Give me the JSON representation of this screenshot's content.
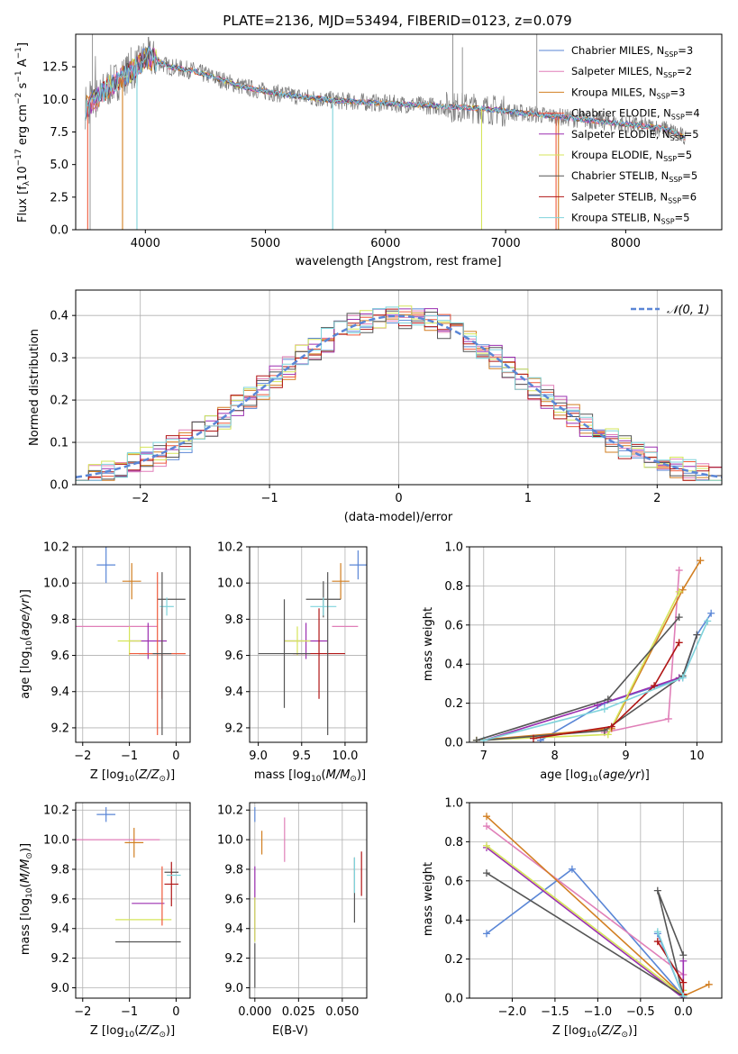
{
  "figure_title": "PLATE=2136, MJD=53494, FIBERID=0123, z=0.079",
  "series": [
    {
      "name": "Chabrier MILES",
      "nssp": "3",
      "color": "#5a86d6"
    },
    {
      "name": "Salpeter MILES",
      "nssp": "2",
      "color": "#e07fb8"
    },
    {
      "name": "Kroupa MILES",
      "nssp": "3",
      "color": "#d27f22"
    },
    {
      "name": "Chabrier ELODIE",
      "nssp": "4",
      "color": "#ef5a3c"
    },
    {
      "name": "Salpeter ELODIE",
      "nssp": "5",
      "color": "#9b2fb0"
    },
    {
      "name": "Kroupa ELODIE",
      "nssp": "5",
      "color": "#d5e55a"
    },
    {
      "name": "Chabrier STELIB",
      "nssp": "5",
      "color": "#555555"
    },
    {
      "name": "Salpeter STELIB",
      "nssp": "6",
      "color": "#b01515"
    },
    {
      "name": "Kroupa STELIB",
      "nssp": "5",
      "color": "#7fd3db"
    }
  ],
  "chart_data": [
    {
      "id": "spectrum",
      "type": "line",
      "xlabel": "wavelength [Angstrom, rest frame]",
      "ylabel": "Flux [fλ10⁻¹⁷ erg cm⁻² s⁻¹ A⁻¹]",
      "xlim": [
        3420,
        8800
      ],
      "ylim": [
        0,
        15
      ],
      "xticks": [
        4000,
        5000,
        6000,
        7000,
        8000
      ],
      "yticks": [
        0.0,
        2.5,
        5.0,
        7.5,
        10.0,
        12.5
      ],
      "data_color": "#7a7a7a",
      "model_color": "#7fd3db",
      "continuum": [
        [
          3500,
          9.3
        ],
        [
          3560,
          9.8
        ],
        [
          3700,
          11.0
        ],
        [
          3850,
          12.0
        ],
        [
          3950,
          12.6
        ],
        [
          4000,
          13.3
        ],
        [
          4080,
          13.0
        ],
        [
          4200,
          12.5
        ],
        [
          4400,
          12.2
        ],
        [
          4600,
          11.6
        ],
        [
          4800,
          11.0
        ],
        [
          5000,
          10.6
        ],
        [
          5300,
          10.2
        ],
        [
          5600,
          9.9
        ],
        [
          6000,
          9.7
        ],
        [
          6400,
          9.5
        ],
        [
          6800,
          9.3
        ],
        [
          7200,
          8.9
        ],
        [
          7600,
          8.5
        ],
        [
          8000,
          8.1
        ],
        [
          8300,
          7.8
        ],
        [
          8400,
          7.5
        ],
        [
          8500,
          7.0
        ]
      ]
    },
    {
      "id": "residuals",
      "type": "histogram",
      "xlabel": "(data-model)/error",
      "ylabel": "Normed distribution",
      "xlim": [
        -2.5,
        2.5
      ],
      "ylim": [
        0,
        0.46
      ],
      "xticks": [
        -2,
        -1,
        0,
        1,
        2
      ],
      "yticks": [
        0.0,
        0.1,
        0.2,
        0.3,
        0.4
      ],
      "bin_width": 0.1,
      "normal_label": "N(0,1)",
      "normal_color": "#5a86d6"
    },
    {
      "id": "age-vs-Z",
      "type": "errorbar",
      "xlabel": "Z [log10(Z/Z⊙)]",
      "ylabel": "age  [log10(age/yr)]",
      "xlim": [
        -2.15,
        0.3
      ],
      "ylim": [
        9.12,
        10.2
      ],
      "xticks": [
        -2,
        -1,
        0
      ],
      "yticks": [
        9.2,
        9.4,
        9.6,
        9.8,
        10.0,
        10.2
      ],
      "points": [
        {
          "s": 0,
          "x": -1.5,
          "y": 10.1,
          "xerr": 0.2,
          "yerr": 0.1
        },
        {
          "s": 1,
          "x": -1.3,
          "y": 9.76,
          "xerr": 0.9,
          "yerr": 0.0
        },
        {
          "s": 2,
          "x": -0.95,
          "y": 10.01,
          "xerr": 0.2,
          "yerr": 0.1
        },
        {
          "s": 4,
          "x": -0.6,
          "y": 9.68,
          "xerr": 0.4,
          "yerr": 0.1
        },
        {
          "s": 5,
          "x": -1.0,
          "y": 9.68,
          "xerr": 0.25,
          "yerr": 0.08
        },
        {
          "s": 6,
          "x": -0.1,
          "y": 9.91,
          "xerr": 0.3,
          "yerr": 0.0
        },
        {
          "s": 7,
          "x": -0.3,
          "y": 9.61,
          "xerr": 0.5,
          "yerr": 0.25
        },
        {
          "s": 8,
          "x": -0.2,
          "y": 9.87,
          "xerr": 0.15,
          "yerr": 0.05
        },
        {
          "s": 3,
          "x": -0.4,
          "y": 9.61,
          "xerr": 0.6,
          "yerr": 0.45
        },
        {
          "s": 6,
          "x": -0.3,
          "y": 9.61,
          "xerr": 0.2,
          "yerr": 0.45
        }
      ]
    },
    {
      "id": "age-vs-mass",
      "type": "errorbar",
      "xlabel": "mass [log10(M/M⊙)]",
      "xlim": [
        8.9,
        10.25
      ],
      "ylim": [
        9.12,
        10.2
      ],
      "xticks": [
        9.0,
        9.5,
        10.0
      ],
      "yticks": [
        9.2,
        9.4,
        9.6,
        9.8,
        10.0,
        10.2
      ],
      "points": [
        {
          "s": 0,
          "x": 10.15,
          "y": 10.1,
          "xerr": 0.1,
          "yerr": 0.08
        },
        {
          "s": 1,
          "x": 10.0,
          "y": 9.76,
          "xerr": 0.15,
          "yerr": 0.0
        },
        {
          "s": 2,
          "x": 9.95,
          "y": 10.01,
          "xerr": 0.1,
          "yerr": 0.1
        },
        {
          "s": 4,
          "x": 9.55,
          "y": 9.68,
          "xerr": 0.25,
          "yerr": 0.1
        },
        {
          "s": 5,
          "x": 9.45,
          "y": 9.68,
          "xerr": 0.15,
          "yerr": 0.08
        },
        {
          "s": 6,
          "x": 9.75,
          "y": 9.91,
          "xerr": 0.2,
          "yerr": 0.1
        },
        {
          "s": 7,
          "x": 9.7,
          "y": 9.61,
          "xerr": 0.3,
          "yerr": 0.25
        },
        {
          "s": 8,
          "x": 9.75,
          "y": 9.87,
          "xerr": 0.15,
          "yerr": 0.05
        },
        {
          "s": 6,
          "x": 9.3,
          "y": 9.61,
          "xerr": 0.3,
          "yerr": 0.3
        },
        {
          "s": 6,
          "x": 9.8,
          "y": 9.61,
          "xerr": 0.0,
          "yerr": 0.45
        }
      ]
    },
    {
      "id": "weight-vs-age",
      "type": "line",
      "xlabel": "age  [log10(age/yr)]",
      "ylabel": "mass weight",
      "xlim": [
        6.8,
        10.35
      ],
      "ylim": [
        0,
        1.0
      ],
      "xticks": [
        7,
        8,
        9,
        10
      ],
      "yticks": [
        0.0,
        0.2,
        0.4,
        0.6,
        0.8,
        1.0
      ],
      "series": [
        {
          "s": 0,
          "x": [
            7.8,
            8.7,
            9.8,
            10.0,
            10.2
          ],
          "y": [
            0.01,
            0.2,
            0.33,
            0.55,
            0.66
          ]
        },
        {
          "s": 1,
          "x": [
            8.7,
            9.6,
            9.75
          ],
          "y": [
            0.05,
            0.12,
            0.88
          ]
        },
        {
          "s": 2,
          "x": [
            6.9,
            8.8,
            9.8,
            10.05
          ],
          "y": [
            0.01,
            0.07,
            0.78,
            0.93
          ]
        },
        {
          "s": 4,
          "x": [
            7.0,
            8.6,
            9.75
          ],
          "y": [
            0.01,
            0.19,
            0.33
          ]
        },
        {
          "s": 5,
          "x": [
            6.9,
            8.75,
            9.75
          ],
          "y": [
            0.01,
            0.04,
            0.77
          ]
        },
        {
          "s": 6,
          "x": [
            7.0,
            8.7,
            9.8,
            10.0
          ],
          "y": [
            0.01,
            0.06,
            0.34,
            0.55
          ]
        },
        {
          "s": 7,
          "x": [
            7.7,
            8.8,
            9.4,
            9.75
          ],
          "y": [
            0.02,
            0.08,
            0.29,
            0.51
          ]
        },
        {
          "s": 8,
          "x": [
            7.0,
            8.7,
            9.8,
            10.15
          ],
          "y": [
            0.01,
            0.17,
            0.33,
            0.62
          ]
        },
        {
          "s": 6,
          "x": [
            6.9,
            8.75,
            9.75
          ],
          "y": [
            0.01,
            0.22,
            0.64
          ]
        }
      ]
    },
    {
      "id": "mass-vs-Z",
      "type": "errorbar",
      "xlabel": "Z [log10(Z/Z⊙)]",
      "ylabel": "mass [log10(M/M⊙)]",
      "xlim": [
        -2.15,
        0.3
      ],
      "ylim": [
        8.93,
        10.25
      ],
      "xticks": [
        -2,
        -1,
        0
      ],
      "yticks": [
        9.0,
        9.2,
        9.4,
        9.6,
        9.8,
        10.0,
        10.2
      ],
      "points": [
        {
          "s": 0,
          "x": -1.5,
          "y": 10.17,
          "xerr": 0.2,
          "yerr": 0.05
        },
        {
          "s": 1,
          "x": -1.3,
          "y": 10.0,
          "xerr": 0.95,
          "yerr": 0.0
        },
        {
          "s": 2,
          "x": -0.9,
          "y": 9.98,
          "xerr": 0.2,
          "yerr": 0.1
        },
        {
          "s": 4,
          "x": -0.6,
          "y": 9.57,
          "xerr": 0.35,
          "yerr": 0.0
        },
        {
          "s": 5,
          "x": -0.7,
          "y": 9.46,
          "xerr": 0.6,
          "yerr": 0.0
        },
        {
          "s": 6,
          "x": -0.1,
          "y": 9.78,
          "xerr": 0.15,
          "yerr": 0.0
        },
        {
          "s": 7,
          "x": -0.1,
          "y": 9.7,
          "xerr": 0.15,
          "yerr": 0.15
        },
        {
          "s": 8,
          "x": -0.05,
          "y": 9.76,
          "xerr": 0.15,
          "yerr": 0.0
        },
        {
          "s": 6,
          "x": -0.6,
          "y": 9.31,
          "xerr": 0.7,
          "yerr": 0.0
        },
        {
          "s": 3,
          "x": -0.3,
          "y": 9.62,
          "xerr": 0.0,
          "yerr": 0.2
        }
      ]
    },
    {
      "id": "mass-vs-ebv",
      "type": "errorbar",
      "xlabel": "E(B-V)",
      "xlim": [
        -0.003,
        0.064
      ],
      "ylim": [
        8.93,
        10.25
      ],
      "xticks": [
        0.0,
        0.025,
        0.05
      ],
      "yticks": [
        9.0,
        9.2,
        9.4,
        9.6,
        9.8,
        10.0,
        10.2
      ],
      "points": [
        {
          "s": 0,
          "x": 0.0,
          "y": 10.17,
          "xerr": 0.0,
          "yerr": 0.05
        },
        {
          "s": 1,
          "x": 0.017,
          "y": 10.0,
          "xerr": 0.0,
          "yerr": 0.15
        },
        {
          "s": 2,
          "x": 0.004,
          "y": 9.98,
          "xerr": 0.0,
          "yerr": 0.08
        },
        {
          "s": 4,
          "x": 0.0,
          "y": 9.57,
          "xerr": 0.0,
          "yerr": 0.25
        },
        {
          "s": 5,
          "x": 0.0,
          "y": 9.46,
          "xerr": 0.0,
          "yerr": 0.15
        },
        {
          "s": 6,
          "x": 0.057,
          "y": 9.66,
          "xerr": 0.0,
          "yerr": 0.22
        },
        {
          "s": 7,
          "x": 0.061,
          "y": 9.77,
          "xerr": 0.0,
          "yerr": 0.15
        },
        {
          "s": 8,
          "x": 0.057,
          "y": 9.76,
          "xerr": 0.0,
          "yerr": 0.12
        },
        {
          "s": 6,
          "x": 0.0,
          "y": 9.15,
          "xerr": 0.0,
          "yerr": 0.15
        }
      ]
    },
    {
      "id": "weight-vs-Z",
      "type": "line",
      "xlabel": "Z [log10(Z/Z⊙)]",
      "ylabel": "mass weight",
      "xlim": [
        -2.5,
        0.45
      ],
      "ylim": [
        0,
        1.0
      ],
      "xticks": [
        -2.0,
        -1.5,
        -1.0,
        -0.5,
        0.0
      ],
      "yticks": [
        0.0,
        0.2,
        0.4,
        0.6,
        0.8,
        1.0
      ],
      "series": [
        {
          "s": 0,
          "x": [
            -2.3,
            -1.3,
            0.0,
            -0.3
          ],
          "y": [
            0.33,
            0.66,
            0.01,
            0.33
          ]
        },
        {
          "s": 1,
          "x": [
            -2.3,
            0.0,
            0.0
          ],
          "y": [
            0.88,
            0.12,
            0.0
          ]
        },
        {
          "s": 2,
          "x": [
            -2.3,
            0.0,
            0.3
          ],
          "y": [
            0.93,
            0.01,
            0.07
          ]
        },
        {
          "s": 4,
          "x": [
            -2.3,
            0.0,
            0.0
          ],
          "y": [
            0.77,
            0.0,
            0.19
          ]
        },
        {
          "s": 5,
          "x": [
            -2.3,
            0.0,
            0.0
          ],
          "y": [
            0.78,
            0.01,
            0.04
          ]
        },
        {
          "s": 6,
          "x": [
            -2.3,
            0.0,
            -0.3,
            0.0
          ],
          "y": [
            0.64,
            0.01,
            0.55,
            0.22
          ]
        },
        {
          "s": 7,
          "x": [
            -0.3,
            0.0,
            0.0
          ],
          "y": [
            0.29,
            0.08,
            0.02
          ]
        },
        {
          "s": 8,
          "x": [
            -0.3,
            0.0
          ],
          "y": [
            0.34,
            0.01
          ]
        }
      ]
    }
  ]
}
